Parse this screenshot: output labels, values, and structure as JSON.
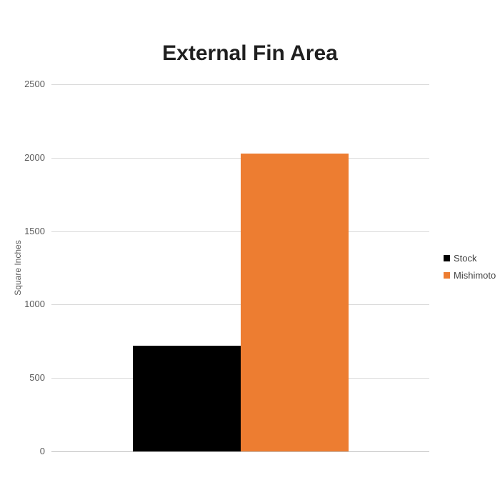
{
  "chart_data": {
    "type": "bar",
    "title": "External Fin Area",
    "xlabel": "",
    "ylabel": "Square Inches",
    "categories": [
      ""
    ],
    "series": [
      {
        "name": "Stock",
        "color": "#000000",
        "values": [
          720
        ]
      },
      {
        "name": "Mishimoto",
        "color": "#ED7D31",
        "values": [
          2030
        ]
      }
    ],
    "ylim": [
      0,
      2500
    ],
    "yticks": [
      0,
      500,
      1000,
      1500,
      2000,
      2500
    ],
    "grid": true,
    "legend_position": "right",
    "gridline_color": "#d9d9d9",
    "axis_line_color": "#bfbfbf",
    "tick_label_color": "#595959"
  }
}
